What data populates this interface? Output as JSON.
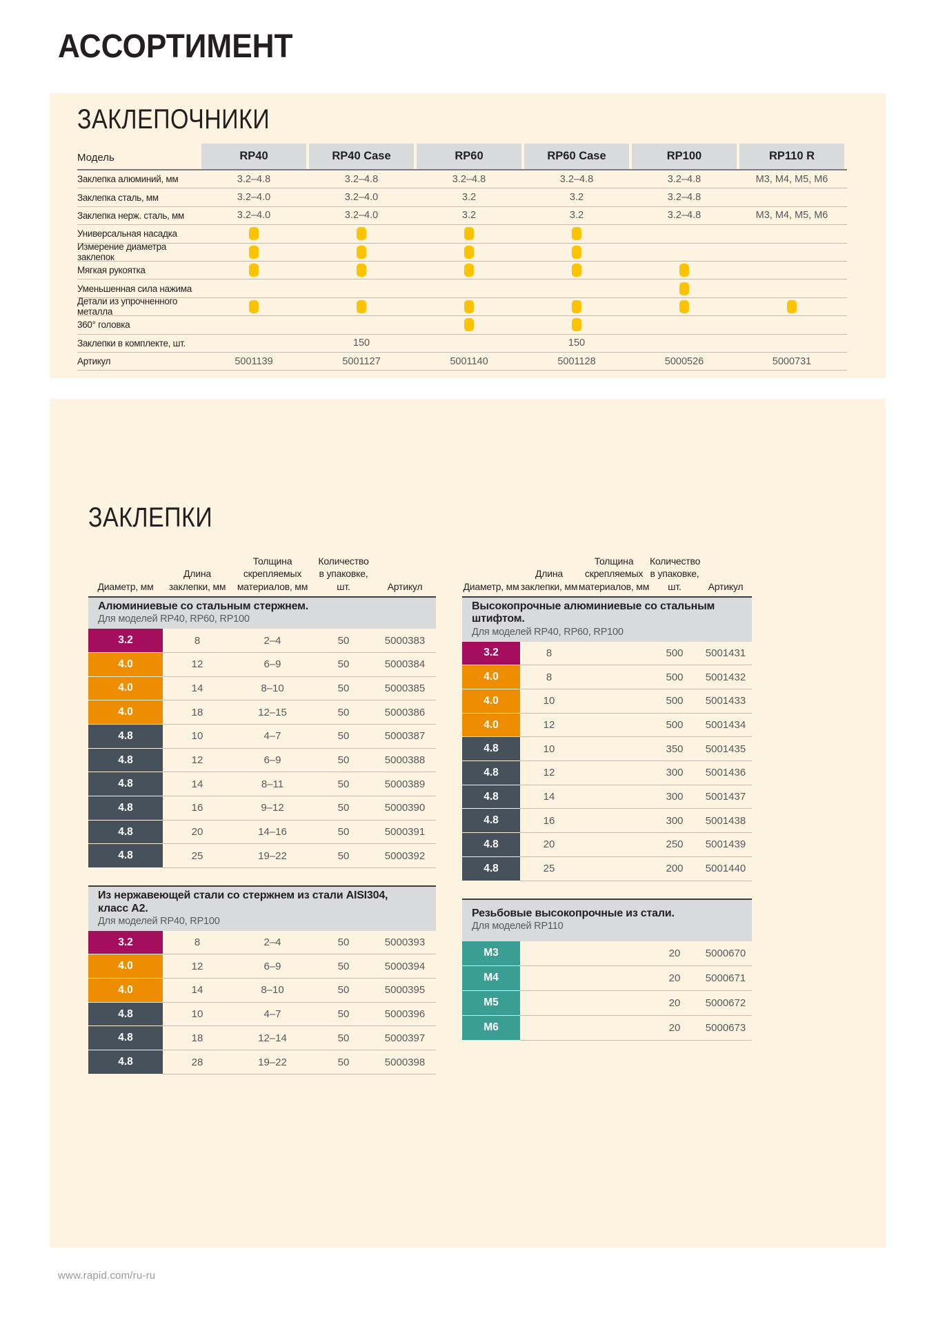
{
  "page": {
    "title": "АССОРТИМЕНТ",
    "footer_url": "www.rapid.com/ru-ru"
  },
  "colors": {
    "panel_bg": "#fcf3e1",
    "header_cell_bg": "#d8dadc",
    "feature_dot": "#fcc400",
    "diameter_magenta": "#a50d5d",
    "diameter_orange": "#ee8d00",
    "diameter_slate": "#47515c",
    "diameter_teal": "#3b9e94"
  },
  "riveters": {
    "section_title": "ЗАКЛЕПОЧНИКИ",
    "model_label": "Модель",
    "models": [
      "RP40",
      "RP40 Case",
      "RP60",
      "RP60 Case",
      "RP100",
      "RP110 R"
    ],
    "rows": [
      {
        "label": "Заклепка алюминий, мм",
        "values": [
          "3.2–4.8",
          "3.2–4.8",
          "3.2–4.8",
          "3.2–4.8",
          "3.2–4.8",
          "M3, M4, M5, M6"
        ]
      },
      {
        "label": "Заклепка сталь, мм",
        "values": [
          "3.2–4.0",
          "3.2–4.0",
          "3.2",
          "3.2",
          "3.2–4.8",
          ""
        ]
      },
      {
        "label": "Заклепка нерж. сталь, мм",
        "values": [
          "3.2–4.0",
          "3.2–4.0",
          "3.2",
          "3.2",
          "3.2–4.8",
          "M3, M4, M5, M6"
        ]
      },
      {
        "label": "Универсальная насадка",
        "values": [
          "dot",
          "dot",
          "dot",
          "dot",
          "",
          ""
        ]
      },
      {
        "label": "Измерение диаметра заклепок",
        "values": [
          "dot",
          "dot",
          "dot",
          "dot",
          "",
          ""
        ]
      },
      {
        "label": "Мягкая рукоятка",
        "values": [
          "dot",
          "dot",
          "dot",
          "dot",
          "dot",
          ""
        ]
      },
      {
        "label": "Уменьшенная сила нажима",
        "values": [
          "",
          "",
          "",
          "",
          "dot",
          ""
        ]
      },
      {
        "label": "Детали из упрочненного металла",
        "values": [
          "dot",
          "dot",
          "dot",
          "dot",
          "dot",
          "dot"
        ]
      },
      {
        "label": "360° головка",
        "values": [
          "",
          "",
          "dot",
          "dot",
          "",
          ""
        ]
      },
      {
        "label": "Заклепки в комплекте, шт.",
        "values": [
          "",
          "150",
          "",
          "150",
          "",
          ""
        ]
      },
      {
        "label": "Артикул",
        "values": [
          "5001139",
          "5001127",
          "5001140",
          "5001128",
          "5000526",
          "5000731"
        ]
      }
    ]
  },
  "rivets": {
    "section_title": "ЗАКЛЕПКИ",
    "column_headers": [
      "Диаметр, мм",
      "Длина\nзаклепки, мм",
      "Толщина\nскрепляемых\nматериалов, мм",
      "Количество\nв упаковке, шт.",
      "Артикул"
    ],
    "diameter_colors": {
      "3.2": "#a50d5d",
      "4.0": "#ee8d00",
      "4.8": "#47515c",
      "M": "#3b9e94"
    },
    "tables": [
      {
        "title": "Алюминиевые со стальным стержнем.",
        "subtitle": "Для моделей RP40, RP60, RP100",
        "rows": [
          [
            "3.2",
            "8",
            "2–4",
            "50",
            "5000383"
          ],
          [
            "4.0",
            "12",
            "6–9",
            "50",
            "5000384"
          ],
          [
            "4.0",
            "14",
            "8–10",
            "50",
            "5000385"
          ],
          [
            "4.0",
            "18",
            "12–15",
            "50",
            "5000386"
          ],
          [
            "4.8",
            "10",
            "4–7",
            "50",
            "5000387"
          ],
          [
            "4.8",
            "12",
            "6–9",
            "50",
            "5000388"
          ],
          [
            "4.8",
            "14",
            "8–11",
            "50",
            "5000389"
          ],
          [
            "4.8",
            "16",
            "9–12",
            "50",
            "5000390"
          ],
          [
            "4.8",
            "20",
            "14–16",
            "50",
            "5000391"
          ],
          [
            "4.8",
            "25",
            "19–22",
            "50",
            "5000392"
          ]
        ]
      },
      {
        "title": "Высокопрочные алюминиевые со стальным штифтом.",
        "subtitle": "Для моделей RP40, RP60, RP100",
        "rows": [
          [
            "3.2",
            "8",
            "",
            "500",
            "5001431"
          ],
          [
            "4.0",
            "8",
            "",
            "500",
            "5001432"
          ],
          [
            "4.0",
            "10",
            "",
            "500",
            "5001433"
          ],
          [
            "4.0",
            "12",
            "",
            "500",
            "5001434"
          ],
          [
            "4.8",
            "10",
            "",
            "350",
            "5001435"
          ],
          [
            "4.8",
            "12",
            "",
            "300",
            "5001436"
          ],
          [
            "4.8",
            "14",
            "",
            "300",
            "5001437"
          ],
          [
            "4.8",
            "16",
            "",
            "300",
            "5001438"
          ],
          [
            "4.8",
            "20",
            "",
            "250",
            "5001439"
          ],
          [
            "4.8",
            "25",
            "",
            "200",
            "5001440"
          ]
        ]
      },
      {
        "title": "Из нержавеющей стали со стержнем из стали AISI304,\nкласс А2.",
        "subtitle": "Для моделей RP40, RP100",
        "rows": [
          [
            "3.2",
            "8",
            "2–4",
            "50",
            "5000393"
          ],
          [
            "4.0",
            "12",
            "6–9",
            "50",
            "5000394"
          ],
          [
            "4.0",
            "14",
            "8–10",
            "50",
            "5000395"
          ],
          [
            "4.8",
            "10",
            "4–7",
            "50",
            "5000396"
          ],
          [
            "4.8",
            "18",
            "12–14",
            "50",
            "5000397"
          ],
          [
            "4.8",
            "28",
            "19–22",
            "50",
            "5000398"
          ]
        ]
      },
      {
        "title": "Резьбовые высокопрочные из стали.",
        "subtitle": "Для моделей RP110",
        "rows": [
          [
            "M3",
            "",
            "",
            "20",
            "5000670"
          ],
          [
            "M4",
            "",
            "",
            "20",
            "5000671"
          ],
          [
            "M5",
            "",
            "",
            "20",
            "5000672"
          ],
          [
            "M6",
            "",
            "",
            "20",
            "5000673"
          ]
        ]
      }
    ]
  }
}
